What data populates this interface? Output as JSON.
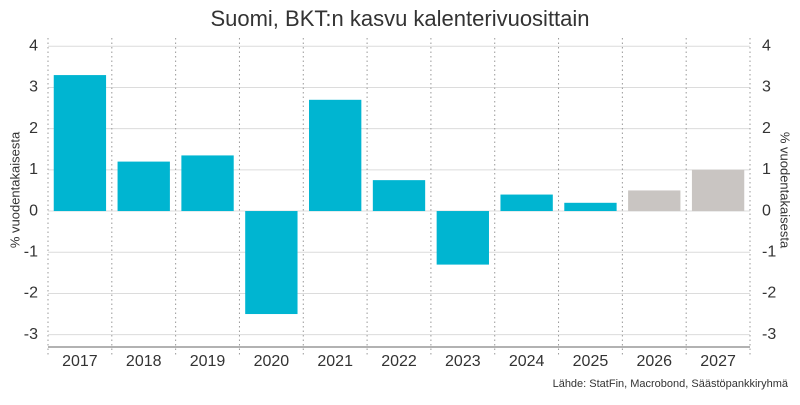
{
  "chart_data": {
    "type": "bar",
    "title": "Suomi, BKT:n kasvu kalenterivuosittain",
    "categories": [
      "2017",
      "2018",
      "2019",
      "2020",
      "2021",
      "2022",
      "2023",
      "2024",
      "2025",
      "2026",
      "2027"
    ],
    "values": [
      3.3,
      1.2,
      1.35,
      -2.5,
      2.7,
      0.75,
      -1.3,
      0.4,
      0.2,
      0.5,
      1.0
    ],
    "colors": [
      "#00b5d1",
      "#00b5d1",
      "#00b5d1",
      "#00b5d1",
      "#00b5d1",
      "#00b5d1",
      "#00b5d1",
      "#00b5d1",
      "#00b5d1",
      "#c9c5c2",
      "#c9c5c2"
    ],
    "ylim": [
      -3.3,
      4.2
    ],
    "yticks": [
      -3,
      -2,
      -1,
      0,
      1,
      2,
      3,
      4
    ],
    "y2lim": [
      -3.3,
      4.2
    ],
    "y2ticks": [
      -3,
      -2,
      -1,
      0,
      1,
      2,
      3,
      4
    ],
    "y_label": "% vuodentakaisesta",
    "y2_label": "% vuodentakaisesta",
    "source": "Lähde: StatFin, Macrobond, Säästöpankkiryhmä",
    "grid": true
  }
}
